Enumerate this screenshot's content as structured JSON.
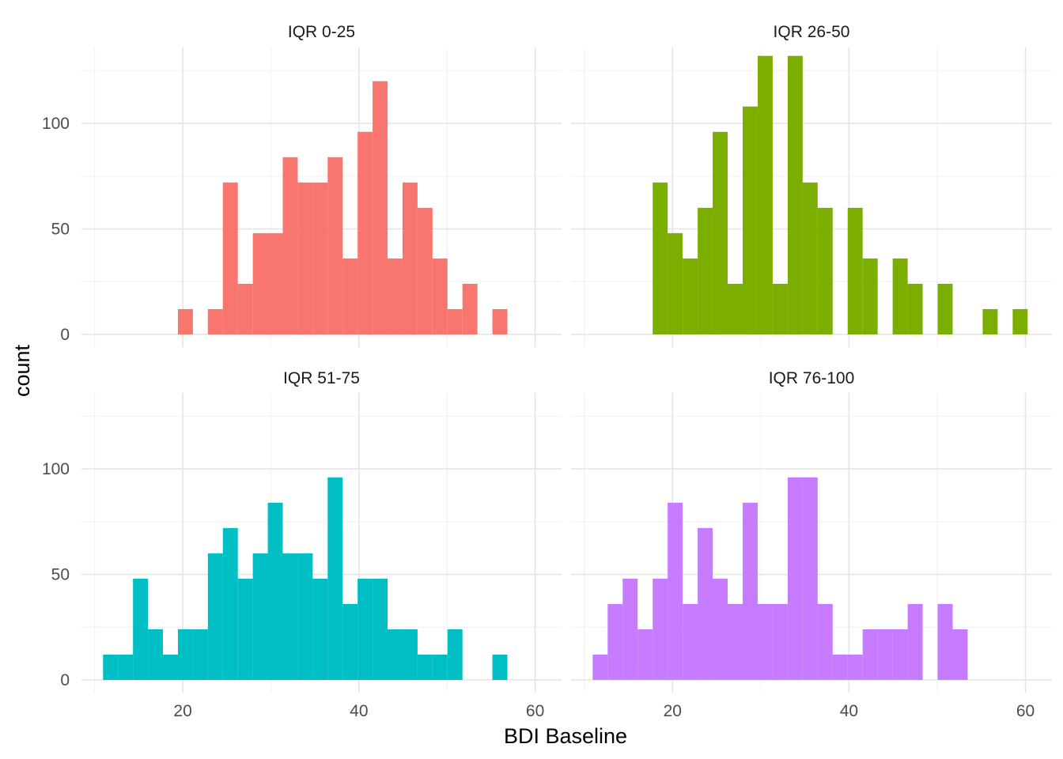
{
  "chart_data": {
    "type": "bar",
    "subtype": "histogram-facet-grid",
    "xlabel": "BDI Baseline",
    "ylabel": "count",
    "xlim": [
      8.5,
      63
    ],
    "ylim": [
      -6,
      136
    ],
    "x_ticks": [
      20,
      40,
      60
    ],
    "y_ticks": [
      0,
      50,
      100
    ],
    "x_minor": [
      10,
      30,
      50
    ],
    "y_minor": [
      25,
      75,
      125
    ],
    "bin_width": 1.7,
    "grid": true,
    "legend": "none",
    "panels": [
      {
        "title": "IQR 0-25",
        "color": "#F8766D",
        "bins": [
          {
            "x": 20.3,
            "count": 12
          },
          {
            "x": 23.7,
            "count": 12
          },
          {
            "x": 25.4,
            "count": 72
          },
          {
            "x": 27.1,
            "count": 24
          },
          {
            "x": 28.8,
            "count": 48
          },
          {
            "x": 30.5,
            "count": 48
          },
          {
            "x": 32.2,
            "count": 84
          },
          {
            "x": 33.9,
            "count": 72
          },
          {
            "x": 35.6,
            "count": 72
          },
          {
            "x": 37.3,
            "count": 84
          },
          {
            "x": 39.0,
            "count": 36
          },
          {
            "x": 40.7,
            "count": 96
          },
          {
            "x": 42.4,
            "count": 120
          },
          {
            "x": 44.1,
            "count": 36
          },
          {
            "x": 45.8,
            "count": 72
          },
          {
            "x": 47.5,
            "count": 60
          },
          {
            "x": 49.2,
            "count": 36
          },
          {
            "x": 50.9,
            "count": 12
          },
          {
            "x": 52.6,
            "count": 24
          },
          {
            "x": 56.0,
            "count": 12
          }
        ]
      },
      {
        "title": "IQR 26-50",
        "color": "#7CAE00",
        "bins": [
          {
            "x": 18.6,
            "count": 72
          },
          {
            "x": 20.3,
            "count": 48
          },
          {
            "x": 22.0,
            "count": 36
          },
          {
            "x": 23.7,
            "count": 60
          },
          {
            "x": 25.4,
            "count": 96
          },
          {
            "x": 27.1,
            "count": 24
          },
          {
            "x": 28.8,
            "count": 108
          },
          {
            "x": 30.5,
            "count": 132
          },
          {
            "x": 32.2,
            "count": 24
          },
          {
            "x": 33.9,
            "count": 132
          },
          {
            "x": 35.6,
            "count": 72
          },
          {
            "x": 37.3,
            "count": 60
          },
          {
            "x": 40.7,
            "count": 60
          },
          {
            "x": 42.4,
            "count": 36
          },
          {
            "x": 45.8,
            "count": 36
          },
          {
            "x": 47.5,
            "count": 24
          },
          {
            "x": 50.9,
            "count": 24
          },
          {
            "x": 56.0,
            "count": 12
          },
          {
            "x": 59.4,
            "count": 12
          }
        ]
      },
      {
        "title": "IQR 51-75",
        "color": "#00BFC4",
        "bins": [
          {
            "x": 11.8,
            "count": 12
          },
          {
            "x": 13.5,
            "count": 12
          },
          {
            "x": 15.2,
            "count": 48
          },
          {
            "x": 16.9,
            "count": 24
          },
          {
            "x": 18.6,
            "count": 12
          },
          {
            "x": 20.3,
            "count": 24
          },
          {
            "x": 22.0,
            "count": 24
          },
          {
            "x": 23.7,
            "count": 60
          },
          {
            "x": 25.4,
            "count": 72
          },
          {
            "x": 27.1,
            "count": 48
          },
          {
            "x": 28.8,
            "count": 60
          },
          {
            "x": 30.5,
            "count": 84
          },
          {
            "x": 32.2,
            "count": 60
          },
          {
            "x": 33.9,
            "count": 60
          },
          {
            "x": 35.6,
            "count": 48
          },
          {
            "x": 37.3,
            "count": 96
          },
          {
            "x": 39.0,
            "count": 36
          },
          {
            "x": 40.7,
            "count": 48
          },
          {
            "x": 42.4,
            "count": 48
          },
          {
            "x": 44.1,
            "count": 24
          },
          {
            "x": 45.8,
            "count": 24
          },
          {
            "x": 47.5,
            "count": 12
          },
          {
            "x": 49.2,
            "count": 12
          },
          {
            "x": 50.9,
            "count": 24
          },
          {
            "x": 56.0,
            "count": 12
          }
        ]
      },
      {
        "title": "IQR 76-100",
        "color": "#C77CFF",
        "bins": [
          {
            "x": 11.8,
            "count": 12
          },
          {
            "x": 13.5,
            "count": 36
          },
          {
            "x": 15.2,
            "count": 48
          },
          {
            "x": 16.9,
            "count": 24
          },
          {
            "x": 18.6,
            "count": 48
          },
          {
            "x": 20.3,
            "count": 84
          },
          {
            "x": 22.0,
            "count": 36
          },
          {
            "x": 23.7,
            "count": 72
          },
          {
            "x": 25.4,
            "count": 48
          },
          {
            "x": 27.1,
            "count": 36
          },
          {
            "x": 28.8,
            "count": 84
          },
          {
            "x": 30.5,
            "count": 36
          },
          {
            "x": 32.2,
            "count": 36
          },
          {
            "x": 33.9,
            "count": 96
          },
          {
            "x": 35.6,
            "count": 96
          },
          {
            "x": 37.3,
            "count": 36
          },
          {
            "x": 39.0,
            "count": 12
          },
          {
            "x": 40.7,
            "count": 12
          },
          {
            "x": 42.4,
            "count": 24
          },
          {
            "x": 44.1,
            "count": 24
          },
          {
            "x": 45.8,
            "count": 24
          },
          {
            "x": 47.5,
            "count": 36
          },
          {
            "x": 50.9,
            "count": 36
          },
          {
            "x": 52.6,
            "count": 24
          }
        ]
      }
    ]
  }
}
